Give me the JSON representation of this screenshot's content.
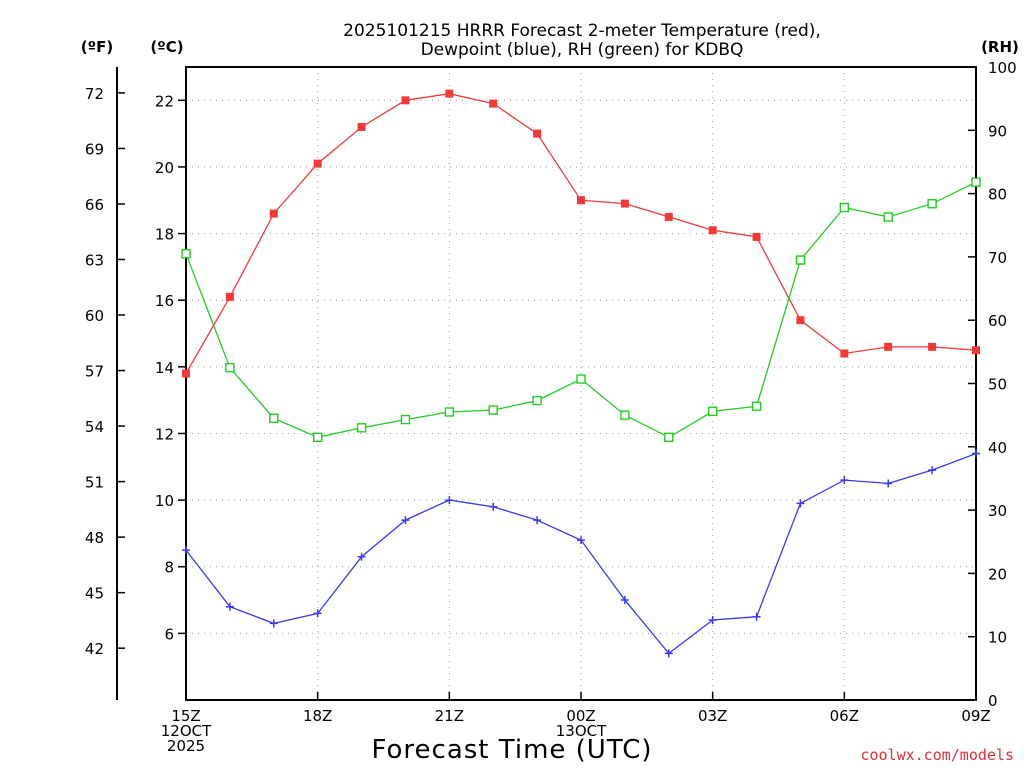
{
  "chart_data": {
    "type": "line",
    "title_line1": "2025101215 HRRR Forecast 2-meter Temperature (red),",
    "title_line2": "Dewpoint (blue), RH (green) for KDBQ",
    "xlabel": "Forecast Time (UTC)",
    "unit_f": "(ºF)",
    "unit_c": "(ºC)",
    "unit_rh": "(RH)",
    "credit": "coolwx.com/models",
    "x_range": [
      0,
      18
    ],
    "x_ticks": [
      {
        "x": 0,
        "lines": [
          "15Z",
          "12OCT",
          "2025"
        ]
      },
      {
        "x": 3,
        "lines": [
          "18Z"
        ]
      },
      {
        "x": 6,
        "lines": [
          "21Z"
        ]
      },
      {
        "x": 9,
        "lines": [
          "00Z",
          "13OCT"
        ]
      },
      {
        "x": 12,
        "lines": [
          "03Z"
        ]
      },
      {
        "x": 15,
        "lines": [
          "06Z"
        ]
      },
      {
        "x": 18,
        "lines": [
          "09Z"
        ]
      }
    ],
    "y_left_c": {
      "range": [
        4.0,
        23.0
      ],
      "ticks": [
        6,
        8,
        10,
        12,
        14,
        16,
        18,
        20,
        22
      ]
    },
    "y_left_f": {
      "ticks": [
        42,
        45,
        48,
        51,
        54,
        57,
        60,
        63,
        66,
        69,
        72
      ]
    },
    "y_right_rh": {
      "range": [
        0,
        100
      ],
      "ticks": [
        0,
        10,
        20,
        30,
        40,
        50,
        60,
        70,
        80,
        90,
        100
      ]
    },
    "series": [
      {
        "name": "Temperature",
        "axis": "c",
        "color": "#f03a3a",
        "marker": "filled-square",
        "values": [
          13.8,
          16.1,
          18.6,
          20.1,
          21.2,
          22.0,
          22.2,
          21.9,
          21.0,
          19.0,
          18.9,
          18.5,
          18.1,
          17.9,
          15.4,
          14.4,
          14.6,
          14.6,
          14.5
        ]
      },
      {
        "name": "Dewpoint",
        "axis": "c",
        "color": "#3a3af0",
        "marker": "plus",
        "values": [
          8.5,
          6.8,
          6.3,
          6.6,
          8.3,
          9.4,
          10.0,
          9.8,
          9.4,
          8.8,
          7.0,
          5.4,
          6.4,
          6.5,
          9.9,
          10.6,
          10.5,
          10.9,
          11.4
        ]
      },
      {
        "name": "RH",
        "axis": "rh",
        "color": "#22cc22",
        "marker": "open-square",
        "values": [
          70.5,
          52.5,
          44.5,
          41.5,
          43.0,
          44.3,
          45.5,
          45.8,
          47.3,
          50.7,
          45.0,
          41.5,
          45.6,
          46.4,
          69.5,
          77.8,
          76.3,
          78.4,
          81.8
        ]
      }
    ],
    "grid": true
  }
}
